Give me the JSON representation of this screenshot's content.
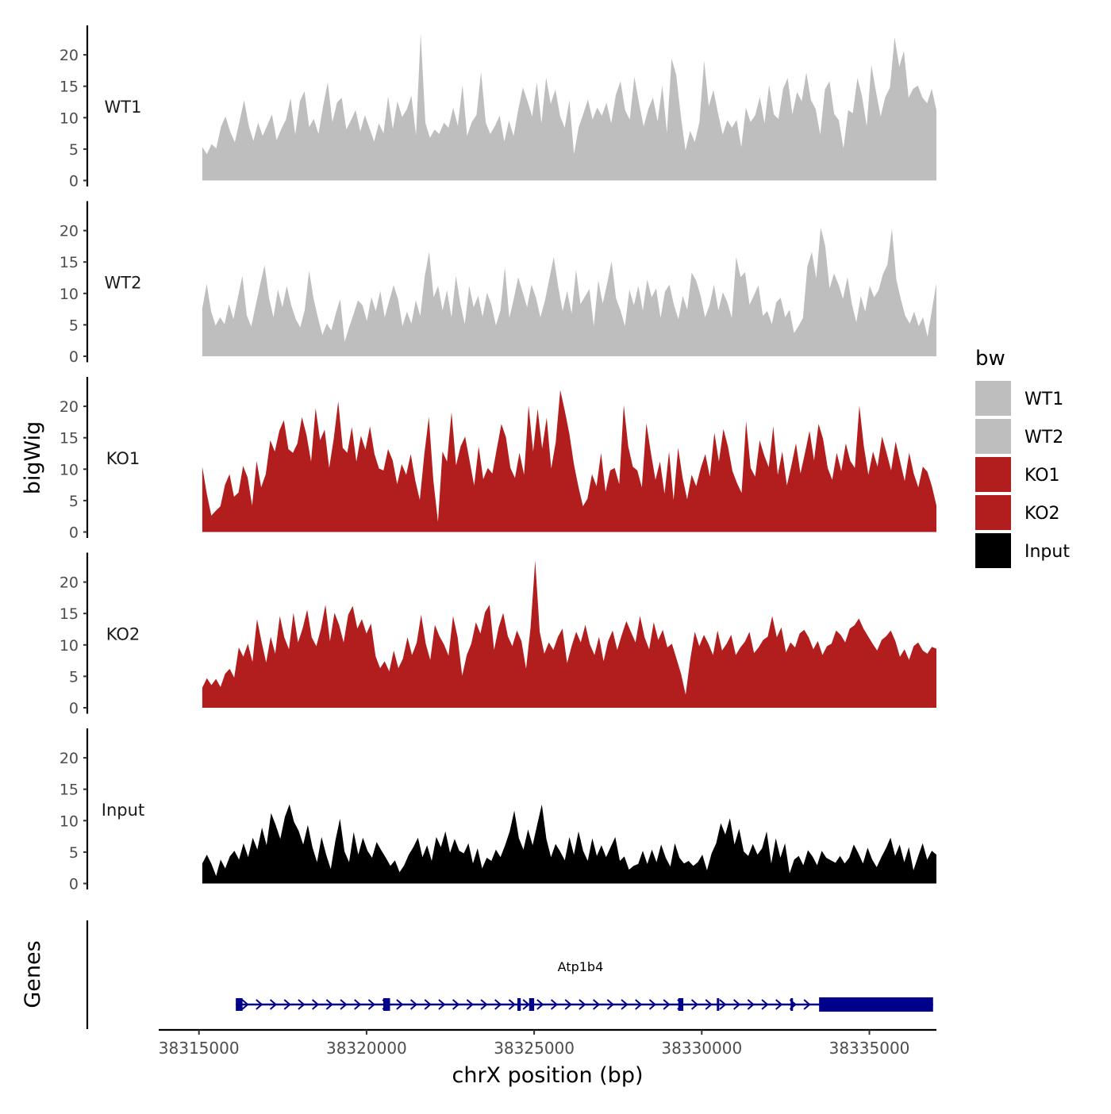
{
  "chart_data": {
    "type": "area",
    "ylabel": "bigWig",
    "xlabel": "chrX position (bp)",
    "genes_label": "Genes",
    "xlim": [
      38313800,
      38337000
    ],
    "x_start": 38315100,
    "x_end": 38337000,
    "x_ticks": [
      38315000,
      38320000,
      38325000,
      38330000,
      38335000
    ],
    "x_tick_labels": [
      "38315000",
      "38320000",
      "38325000",
      "38330000",
      "38335000"
    ],
    "ylim": [
      0,
      25
    ],
    "y_ticks": [
      0,
      5,
      10,
      15,
      20
    ],
    "y_tick_labels": [
      "0",
      "5",
      "10",
      "15",
      "20"
    ],
    "legend": {
      "title": "bw",
      "position": "right",
      "entries": [
        {
          "label": "WT1",
          "color": "#bebebe"
        },
        {
          "label": "WT2",
          "color": "#bebebe"
        },
        {
          "label": "KO1",
          "color": "#b21e1e"
        },
        {
          "label": "KO2",
          "color": "#b21e1e"
        },
        {
          "label": "Input",
          "color": "#000000"
        }
      ]
    },
    "series": [
      {
        "name": "WT1",
        "color": "#bebebe",
        "values": [
          5.3,
          4.2,
          5.8,
          5.1,
          8.5,
          10.2,
          7.8,
          6.1,
          9.4,
          12.8,
          8.7,
          6.3,
          9.2,
          7.1,
          8.8,
          10.5,
          6.4,
          8.2,
          9.7,
          13.1,
          7.3,
          12.6,
          14.2,
          8.5,
          9.8,
          7.4,
          11.8,
          15.6,
          9.3,
          12.4,
          13.2,
          8.1,
          9.6,
          11.2,
          7.8,
          10.4,
          8.3,
          6.2,
          9.1,
          7.5,
          13.4,
          8.2,
          12.6,
          10.1,
          11.3,
          13.5,
          7.2,
          23.4,
          9.2,
          6.8,
          8.1,
          7.4,
          9.2,
          8.4,
          11.6,
          8.7,
          15.2,
          7.1,
          9.3,
          10.4,
          17.3,
          9.2,
          7.4,
          8.7,
          10.3,
          6.2,
          9.5,
          7.1,
          11.3,
          14.8,
          12.6,
          10.2,
          15.6,
          9.1,
          16.4,
          12.2,
          14.5,
          10.3,
          8.4,
          12.8,
          4.2,
          8.5,
          10.6,
          12.9,
          9.7,
          11.6,
          10.3,
          12.4,
          9.1,
          13.6,
          15.8,
          11.2,
          9.7,
          16.5,
          12.3,
          8.6,
          11.4,
          13.2,
          9.4,
          15.1,
          7.6,
          19.4,
          16.8,
          10.2,
          4.8,
          7.9,
          6.1,
          9.3,
          19.1,
          11.8,
          14.4,
          10.7,
          7.3,
          9.6,
          8.4,
          9.7,
          5.3,
          11.6,
          9.3,
          10.4,
          13.3,
          9.1,
          15.2,
          10.5,
          9.8,
          14.6,
          16.3,
          10.5,
          14.1,
          12.6,
          17.2,
          12.8,
          11.4,
          7.3,
          14.5,
          15.8,
          10.6,
          9.6,
          5.1,
          11.2,
          10.7,
          16.3,
          13.4,
          8.6,
          18.4,
          14.1,
          10.2,
          13.3,
          14.8,
          22.8,
          18.1,
          20.6,
          13.2,
          14.6,
          15.1,
          13.2,
          12.3,
          14.6,
          11.2
        ]
      },
      {
        "name": "WT2",
        "color": "#bebebe",
        "values": [
          7.6,
          11.5,
          7.1,
          4.9,
          6.2,
          5.1,
          8.3,
          5.9,
          9.4,
          12.8,
          6.5,
          4.7,
          8.1,
          11.4,
          14.5,
          9.3,
          6.2,
          10.6,
          7.8,
          11.2,
          8.1,
          5.9,
          4.6,
          7.3,
          13.6,
          9.2,
          6.1,
          3.4,
          5.2,
          4.1,
          6.8,
          9.1,
          2.3,
          4.6,
          6.7,
          8.9,
          8.1,
          5.6,
          9.4,
          7.2,
          10.4,
          6.2,
          8.8,
          11.3,
          9.1,
          4.8,
          7.1,
          5.2,
          8.9,
          6.4,
          12.7,
          16.6,
          9.4,
          11.2,
          7.3,
          10.5,
          6.2,
          12.8,
          8.4,
          5.1,
          11.2,
          7.8,
          9.6,
          6.3,
          10.1,
          8.2,
          4.9,
          7.3,
          14.2,
          6.1,
          9.1,
          12.6,
          10.2,
          7.8,
          11.4,
          9.3,
          6.2,
          8.8,
          12.3,
          15.8,
          11.1,
          7.2,
          10.4,
          6.8,
          13.8,
          8.3,
          9.5,
          10.7,
          4.8,
          12.1,
          8.4,
          11.6,
          15.1,
          9.2,
          7.3,
          4.8,
          10.6,
          8.1,
          11.2,
          7.3,
          12.2,
          9.4,
          10.8,
          6.1,
          10.3,
          11.4,
          8.2,
          5.9,
          9.6,
          7.4,
          13.3,
          12.1,
          9.6,
          6.2,
          8.1,
          11.4,
          7.3,
          10.2,
          8.6,
          6.1,
          15.8,
          12.6,
          13.4,
          8.2,
          9.7,
          11.3,
          6.4,
          7.2,
          5.1,
          8.6,
          9.3,
          6.2,
          7.4,
          3.7,
          4.8,
          6.1,
          14.3,
          16.6,
          12.4,
          20.5,
          17.6,
          10.8,
          13.2,
          11.4,
          9.1,
          12.6,
          8.3,
          5.4,
          9.6,
          7.1,
          11.2,
          9.4,
          10.5,
          13.1,
          14.6,
          20.3,
          12.2,
          9.1,
          6.4,
          5.2,
          7.1,
          4.8,
          6.2,
          3.1,
          7.4,
          11.6
        ]
      },
      {
        "name": "KO1",
        "color": "#b21e1e",
        "values": [
          10.4,
          6.1,
          2.6,
          3.4,
          4.1,
          7.5,
          9.2,
          5.6,
          6.3,
          10.5,
          8.7,
          4.2,
          11.3,
          7.1,
          9.2,
          14.6,
          12.8,
          16.1,
          17.8,
          13.2,
          12.6,
          14.1,
          18.3,
          15.4,
          11.2,
          19.7,
          14.6,
          16.3,
          10.2,
          14.8,
          20.8,
          13.4,
          12.6,
          16.7,
          11.2,
          15.3,
          13.1,
          16.8,
          12.4,
          10.1,
          9.8,
          13.2,
          11.4,
          7.6,
          10.8,
          9.1,
          12.4,
          8.2,
          5.1,
          12.4,
          18.3,
          8.2,
          1.6,
          12.8,
          11.2,
          19.1,
          10.6,
          13.6,
          15.2,
          11.3,
          7.4,
          13.6,
          8.4,
          10.2,
          9.3,
          13.3,
          17.2,
          15.1,
          10.2,
          8.6,
          12.6,
          9.1,
          20.1,
          12.8,
          19.6,
          13.3,
          18.2,
          10.1,
          14.3,
          22.6,
          19.3,
          15.6,
          10.8,
          7.2,
          4.1,
          5.3,
          9.2,
          7.3,
          12.6,
          6.4,
          9.8,
          10.2,
          7.6,
          20.2,
          13.6,
          10.4,
          9.8,
          7.1,
          17.3,
          12.6,
          8.3,
          11.2,
          6.1,
          12.8,
          5.1,
          13.4,
          8.6,
          5.2,
          9.1,
          7.3,
          10.2,
          12.4,
          8.8,
          15.8,
          11.2,
          16.4,
          13.6,
          9.7,
          7.8,
          6.2,
          17.6,
          10.2,
          8.8,
          14.6,
          12.2,
          10.3,
          16.8,
          9.1,
          12.8,
          7.4,
          10.6,
          14.1,
          9.3,
          12.6,
          16.1,
          11.4,
          17.2,
          14.8,
          10.2,
          8.3,
          12.6,
          9.7,
          14.1,
          11.3,
          10.2,
          20.1,
          13.6,
          9.1,
          12.8,
          10.4,
          15.2,
          12.6,
          9.8,
          14.4,
          11.2,
          8.1,
          12.6,
          9.3,
          7.1,
          10.4,
          9.6,
          7.3,
          4.2
        ]
      },
      {
        "name": "KO2",
        "color": "#b21e1e",
        "values": [
          3.2,
          4.7,
          3.6,
          4.6,
          3.3,
          5.4,
          6.2,
          4.8,
          9.6,
          8.1,
          10.2,
          7.3,
          14.1,
          10.5,
          7.2,
          11.3,
          8.6,
          14.6,
          11.2,
          9.3,
          15.1,
          10.4,
          12.6,
          15.6,
          11.2,
          9.8,
          12.5,
          16.4,
          10.6,
          15.1,
          13.2,
          10.4,
          14.8,
          16.2,
          12.6,
          14.1,
          11.8,
          13.4,
          8.2,
          6.3,
          7.4,
          5.8,
          9.1,
          6.3,
          7.8,
          11.2,
          8.4,
          10.3,
          14.8,
          10.2,
          7.6,
          13.2,
          11.4,
          10.1,
          8.3,
          14.6,
          11.2,
          5.1,
          8.4,
          10.2,
          13.6,
          11.8,
          15.2,
          16.4,
          9.2,
          12.8,
          15.1,
          11.4,
          9.8,
          12.3,
          10.6,
          6.2,
          12.8,
          23.4,
          12.1,
          8.6,
          10.4,
          9.2,
          11.3,
          12.6,
          7.1,
          9.8,
          12.1,
          10.4,
          13.2,
          10.1,
          8.4,
          11.3,
          7.4,
          10.6,
          12.3,
          9.2,
          11.6,
          13.8,
          12.1,
          10.4,
          14.6,
          11.2,
          9.3,
          13.6,
          10.8,
          12.4,
          9.6,
          10.2,
          7.8,
          5.4,
          2.1,
          7.6,
          12.1,
          9.8,
          11.6,
          10.2,
          8.4,
          12.3,
          9.1,
          10.2,
          11.6,
          8.4,
          9.6,
          10.5,
          12.1,
          8.7,
          9.6,
          10.8,
          11.3,
          14.6,
          11.2,
          12.8,
          8.8,
          10.4,
          9.6,
          11.8,
          12.4,
          11.2,
          9.3,
          10.6,
          8.4,
          9.8,
          10.2,
          12.3,
          11.6,
          10.4,
          12.6,
          13.1,
          14.2,
          12.6,
          11.4,
          10.2,
          9.1,
          10.8,
          11.4,
          12.3,
          10.6,
          8.1,
          9.3,
          7.6,
          9.8,
          10.4,
          9.1,
          8.6,
          9.7,
          9.4
        ]
      },
      {
        "name": "Input",
        "color": "#000000",
        "values": [
          3.2,
          4.6,
          3.1,
          1.2,
          3.8,
          2.4,
          4.3,
          5.2,
          3.8,
          6.4,
          4.2,
          7.3,
          5.4,
          8.9,
          6.1,
          11.2,
          9.3,
          7.1,
          10.6,
          12.6,
          9.8,
          8.4,
          6.2,
          9.3,
          5.8,
          3.4,
          7.4,
          4.6,
          2.3,
          6.8,
          10.3,
          5.1,
          3.4,
          8.2,
          4.6,
          7.3,
          5.2,
          4.1,
          6.6,
          5.3,
          4.1,
          2.8,
          3.7,
          1.8,
          2.9,
          4.6,
          5.8,
          7.3,
          4.2,
          6.1,
          3.6,
          7.4,
          5.8,
          8.3,
          4.9,
          7.1,
          5.2,
          4.8,
          6.4,
          3.2,
          5.6,
          2.4,
          4.1,
          3.6,
          5.4,
          4.2,
          6.1,
          8.3,
          11.6,
          7.2,
          5.4,
          8.6,
          6.1,
          9.4,
          12.6,
          7.1,
          4.2,
          6.3,
          5.1,
          3.7,
          7.4,
          4.6,
          8.3,
          5.2,
          3.6,
          7.2,
          4.4,
          6.1,
          4.2,
          5.8,
          7.4,
          3.6,
          4.3,
          2.2,
          2.8,
          3.1,
          5.2,
          3.1,
          5.4,
          3.4,
          6.2,
          4.1,
          2.7,
          6.4,
          4.1,
          3.2,
          3.6,
          2.8,
          3.4,
          4.6,
          2.1,
          4.8,
          6.4,
          9.6,
          7.8,
          10.4,
          6.2,
          8.7,
          5.1,
          4.4,
          6.3,
          4.6,
          5.6,
          8.3,
          3.2,
          7.2,
          4.1,
          6.4,
          1.6,
          3.8,
          4.4,
          2.9,
          5.3,
          4.3,
          2.9,
          5.2,
          4.1,
          3.7,
          3.3,
          4.4,
          3.2,
          4.1,
          6.2,
          4.8,
          3.2,
          5.7,
          3.8,
          2.6,
          4.2,
          5.6,
          7.3,
          4.4,
          6.2,
          3.4,
          5.8,
          2.1,
          4.3,
          6.4,
          3.8,
          5.2,
          4.6
        ]
      }
    ],
    "gene": {
      "name": "Atp1b4",
      "color": "#00008b",
      "start": 38316100,
      "end": 38336900,
      "exons": [
        {
          "start": 38316100,
          "end": 38316300
        },
        {
          "start": 38320500,
          "end": 38320700
        },
        {
          "start": 38324500,
          "end": 38324600
        },
        {
          "start": 38324850,
          "end": 38325000
        },
        {
          "start": 38329300,
          "end": 38329450
        },
        {
          "start": 38330450,
          "end": 38330520
        },
        {
          "start": 38332650,
          "end": 38332720
        },
        {
          "start": 38333500,
          "end": 38336900
        }
      ]
    }
  }
}
